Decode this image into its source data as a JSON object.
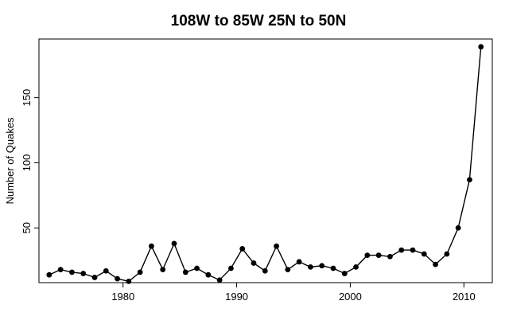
{
  "chart_data": {
    "type": "line",
    "title": "108W to 85W   25N to 50N",
    "xlabel": "",
    "ylabel": "Number of Quakes",
    "xlim": [
      1972.6,
      2012.5
    ],
    "ylim": [
      8,
      195
    ],
    "x_ticks": [
      1980,
      1990,
      2000,
      2010
    ],
    "y_ticks": [
      50,
      100,
      150
    ],
    "grid": false,
    "legend": "none",
    "series": [
      {
        "x": [
          1973.5,
          1974.5,
          1975.5,
          1976.5,
          1977.5,
          1978.5,
          1979.5,
          1980.5,
          1981.5,
          1982.5,
          1983.5,
          1984.5,
          1985.5,
          1986.5,
          1987.5,
          1988.5,
          1989.5,
          1990.5,
          1991.5,
          1992.5,
          1993.5,
          1994.5,
          1995.5,
          1996.5,
          1997.5,
          1998.5,
          1999.5,
          2000.5,
          2001.5,
          2002.5,
          2003.5,
          2004.5,
          2005.5,
          2006.5,
          2007.5,
          2008.5,
          2009.5,
          2010.5,
          2011.5
        ],
        "values": [
          14,
          18,
          16,
          15,
          12,
          17,
          11,
          9,
          16,
          36,
          18,
          38,
          16,
          19,
          14,
          10,
          19,
          34,
          23,
          17,
          36,
          18,
          24,
          20,
          21,
          19,
          15,
          20,
          29,
          29,
          28,
          33,
          33,
          30,
          22,
          30,
          50,
          87,
          189
        ]
      }
    ]
  },
  "style": {
    "line_color": "#000000",
    "point_color": "#000000"
  }
}
